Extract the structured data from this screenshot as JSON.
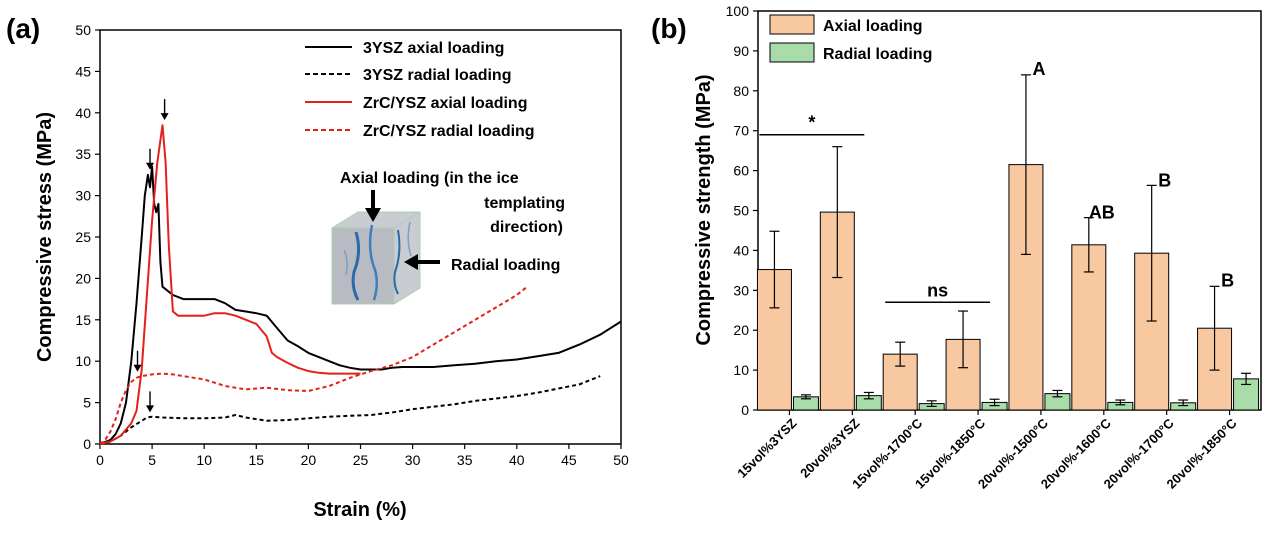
{
  "chart_data": [
    {
      "type": "line",
      "panel_label": "(a)",
      "xlabel": "Strain (%)",
      "ylabel": "Compressive stress (MPa)",
      "xlim": [
        0,
        50
      ],
      "ylim": [
        0,
        50
      ],
      "xticks": [
        0,
        5,
        10,
        15,
        20,
        25,
        30,
        35,
        40,
        45,
        50
      ],
      "yticks": [
        0,
        5,
        10,
        15,
        20,
        25,
        30,
        35,
        40,
        45,
        50
      ],
      "legend_position": "top-right",
      "series": [
        {
          "name": "3YSZ axial loading",
          "color": "#000000",
          "style": "solid",
          "x": [
            0,
            1,
            1.5,
            2,
            2.5,
            3,
            3.5,
            4,
            4.3,
            4.6,
            4.8,
            5,
            5.2,
            5.4,
            5.6,
            5.8,
            6,
            7,
            8,
            9,
            10,
            11,
            12,
            13,
            14,
            15,
            16,
            17,
            18,
            19,
            20,
            21,
            22,
            23,
            24,
            25,
            26,
            27,
            28,
            29,
            30,
            32,
            34,
            36,
            38,
            40,
            42,
            44,
            46,
            48,
            50
          ],
          "y": [
            0,
            0.5,
            1.2,
            2.5,
            5,
            10,
            17,
            25,
            30,
            32.5,
            31,
            33.5,
            29,
            28,
            29,
            22,
            19,
            18,
            17.5,
            17.5,
            17.5,
            17.5,
            17,
            16.2,
            16,
            15.8,
            15.5,
            14,
            12.5,
            11.8,
            11,
            10.5,
            10,
            9.5,
            9.2,
            9,
            9,
            9,
            9.2,
            9.3,
            9.3,
            9.3,
            9.5,
            9.7,
            10,
            10.2,
            10.6,
            11,
            12,
            13.2,
            14.8
          ]
        },
        {
          "name": "3YSZ radial loading",
          "color": "#000000",
          "style": "dashed",
          "x": [
            0,
            1,
            2,
            3,
            4,
            4.5,
            5,
            6,
            8,
            10,
            12,
            13,
            14,
            16,
            18,
            20,
            22,
            24,
            26,
            28,
            30,
            32,
            34,
            36,
            38,
            40,
            42,
            44,
            46,
            48
          ],
          "y": [
            0,
            0.3,
            1,
            2,
            2.8,
            3.2,
            3.3,
            3.2,
            3.1,
            3.1,
            3.2,
            3.5,
            3.2,
            2.8,
            2.9,
            3.1,
            3.3,
            3.4,
            3.5,
            3.8,
            4.2,
            4.5,
            4.8,
            5.2,
            5.5,
            5.8,
            6.2,
            6.7,
            7.2,
            8.2
          ]
        },
        {
          "name": "ZrC/YSZ axial loading",
          "color": "#e32119",
          "style": "solid",
          "x": [
            0,
            1,
            2,
            3,
            3.5,
            4,
            4.5,
            5,
            5.5,
            6,
            6.3,
            6.6,
            7,
            7.5,
            8,
            9,
            10,
            11,
            12,
            13,
            14,
            15,
            16,
            16.5,
            17,
            18,
            19,
            20,
            21,
            22,
            23,
            24,
            25
          ],
          "y": [
            0,
            0.3,
            1,
            2.5,
            4,
            9,
            18,
            27,
            34,
            38.5,
            34,
            24,
            16,
            15.5,
            15.5,
            15.5,
            15.5,
            15.8,
            15.8,
            15.5,
            15,
            14.5,
            13,
            11,
            10.5,
            9.8,
            9.2,
            8.8,
            8.6,
            8.5,
            8.5,
            8.5,
            8.5
          ]
        },
        {
          "name": "ZrC/YSZ radial loading",
          "color": "#e32119",
          "style": "dashed",
          "x": [
            0,
            0.5,
            1,
            1.5,
            2,
            2.5,
            3,
            3.5,
            4,
            5,
            6,
            7,
            8,
            9,
            10,
            12,
            14,
            16,
            18,
            20,
            22,
            24,
            26,
            28,
            30,
            32,
            34,
            36,
            38,
            40,
            41
          ],
          "y": [
            0,
            0.5,
            1.5,
            3,
            5,
            6.5,
            7.5,
            8,
            8.2,
            8.4,
            8.5,
            8.4,
            8.2,
            8,
            7.8,
            7,
            6.6,
            6.8,
            6.5,
            6.4,
            7,
            8,
            8.8,
            9.5,
            10.5,
            12,
            13.5,
            15,
            16.5,
            18,
            19
          ]
        }
      ],
      "arrows": [
        {
          "x": 4.8,
          "y": 33
        },
        {
          "x": 6.2,
          "y": 39
        },
        {
          "x": 3.6,
          "y": 8.6
        },
        {
          "x": 4.8,
          "y": 3.7
        }
      ],
      "annotations": {
        "axial_text_line1": "Axial loading (in the ice",
        "axial_text_line2": "templating",
        "axial_text_line3": "direction)",
        "radial_text": "Radial loading"
      }
    },
    {
      "type": "bar",
      "panel_label": "(b)",
      "xlabel": "",
      "ylabel": "Compressive strength (MPa)",
      "ylim": [
        0,
        100
      ],
      "yticks": [
        0,
        10,
        20,
        30,
        40,
        50,
        60,
        70,
        80,
        90,
        100
      ],
      "legend_position": "top-left",
      "categories": [
        "15vol%3YSZ",
        "20vol%3YSZ",
        "15vol%-1700°C",
        "15vol%-1850°C",
        "20vol%-1500°C",
        "20vol%-1600°C",
        "20vol%-1700°C",
        "20vol%-1850°C"
      ],
      "series": [
        {
          "name": "Axial loading",
          "color": "#f8c8a0",
          "values": [
            35.2,
            49.6,
            14,
            17.7,
            61.5,
            41.4,
            39.3,
            20.5
          ],
          "errors": [
            9.6,
            16.4,
            3,
            7.1,
            22.5,
            6.8,
            17,
            10.5
          ]
        },
        {
          "name": "Radial loading",
          "color": "#a8dca8",
          "values": [
            3.3,
            3.6,
            1.6,
            1.9,
            4.1,
            1.9,
            1.8,
            7.8
          ],
          "errors": [
            0.5,
            0.8,
            0.7,
            0.8,
            0.8,
            0.6,
            0.7,
            1.4
          ]
        }
      ],
      "significance": [
        {
          "label": "*",
          "from": 0,
          "to": 1,
          "y": 69
        },
        {
          "label": "ns",
          "from": 2,
          "to": 3,
          "y": 27
        }
      ],
      "group_labels": [
        {
          "label": "A",
          "category": 4,
          "y": 86
        },
        {
          "label": "AB",
          "category": 5,
          "y": 50
        },
        {
          "label": "B",
          "category": 6,
          "y": 58
        },
        {
          "label": "B",
          "category": 7,
          "y": 33
        }
      ]
    }
  ]
}
